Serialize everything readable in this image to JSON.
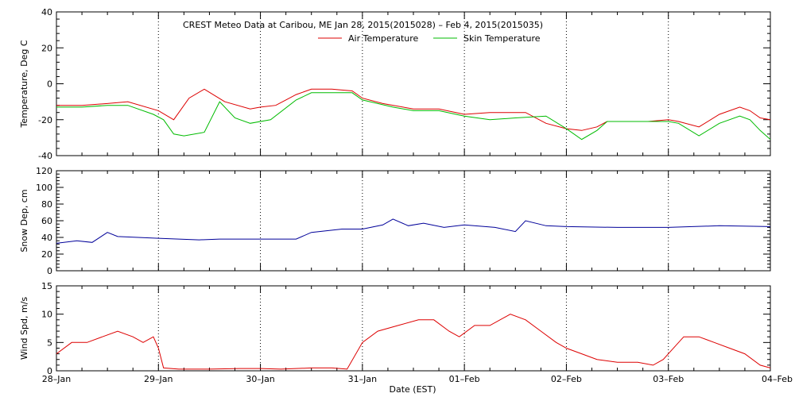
{
  "figure": {
    "title": "CREST Meteo Data at Caribou, ME   Jan 28, 2015(2015028) – Feb  4, 2015(2015035)",
    "xlabel": "Date (EST)"
  },
  "colors": {
    "air": "#dd0000",
    "skin": "#00bb00",
    "snow": "#000099",
    "wind": "#dd0000",
    "axis": "#000000"
  },
  "chart_data": [
    {
      "type": "line",
      "ylabel": "Temperature, Deg C",
      "ylim": [
        -40,
        40
      ],
      "yticks": [
        "-40",
        "-20",
        "0",
        "20",
        "40"
      ],
      "xlim": [
        0,
        7
      ],
      "xticks": [
        "28–Jan",
        "29–Jan",
        "30–Jan",
        "31–Jan",
        "01–Feb",
        "02–Feb",
        "03–Feb",
        "04–Feb"
      ],
      "grid": "vertical dotted",
      "legend": "top-center",
      "series": [
        {
          "name": "Air Temperature",
          "x": [
            0,
            0.25,
            0.5,
            0.7,
            1.0,
            1.15,
            1.3,
            1.45,
            1.65,
            1.9,
            2.0,
            2.15,
            2.35,
            2.5,
            2.7,
            2.9,
            3.0,
            3.2,
            3.5,
            3.75,
            4.0,
            4.25,
            4.4,
            4.6,
            4.8,
            5.0,
            5.15,
            5.3,
            5.4,
            5.6,
            5.8,
            6.0,
            6.1,
            6.3,
            6.5,
            6.7,
            6.8,
            6.9,
            7.0
          ],
          "y": [
            -12,
            -12,
            -11,
            -10,
            -15,
            -20,
            -8,
            -3,
            -10,
            -14,
            -13,
            -12,
            -6,
            -3,
            -3,
            -4,
            -8,
            -11,
            -14,
            -14,
            -17,
            -16,
            -16,
            -16,
            -22,
            -25,
            -26,
            -24,
            -21,
            -21,
            -21,
            -20,
            -21,
            -24,
            -17,
            -13,
            -15,
            -19,
            -20
          ]
        },
        {
          "name": "Skin Temperature",
          "x": [
            0,
            0.25,
            0.5,
            0.7,
            0.95,
            1.05,
            1.15,
            1.25,
            1.45,
            1.6,
            1.75,
            1.9,
            2.1,
            2.35,
            2.5,
            2.7,
            2.9,
            3.0,
            3.3,
            3.5,
            3.75,
            4.0,
            4.25,
            4.5,
            4.8,
            5.0,
            5.15,
            5.3,
            5.4,
            5.6,
            5.8,
            6.0,
            6.1,
            6.3,
            6.5,
            6.7,
            6.8,
            6.9,
            7.0
          ],
          "y": [
            -13,
            -13,
            -12,
            -12,
            -17,
            -20,
            -28,
            -29,
            -27,
            -10,
            -19,
            -22,
            -20,
            -9,
            -5,
            -5,
            -5,
            -9,
            -13,
            -15,
            -15,
            -18,
            -20,
            -19,
            -18,
            -25,
            -31,
            -26,
            -21,
            -21,
            -21,
            -21,
            -22,
            -29,
            -22,
            -18,
            -20,
            -26,
            -31
          ]
        }
      ]
    },
    {
      "type": "line",
      "ylabel": "Snow Dep, cm",
      "ylim": [
        0,
        120
      ],
      "yticks": [
        "0",
        "20",
        "40",
        "60",
        "80",
        "100",
        "120"
      ],
      "xlim": [
        0,
        7
      ],
      "grid": "vertical dotted",
      "series": [
        {
          "x": [
            0,
            0.2,
            0.35,
            0.5,
            0.6,
            0.8,
            1.0,
            1.2,
            1.4,
            1.6,
            1.8,
            2.0,
            2.2,
            2.35,
            2.5,
            2.8,
            3.0,
            3.2,
            3.3,
            3.45,
            3.6,
            3.8,
            4.0,
            4.3,
            4.5,
            4.6,
            4.8,
            5.0,
            5.5,
            6.0,
            6.5,
            7.0
          ],
          "y": [
            33,
            36,
            34,
            46,
            41,
            40,
            39,
            38,
            37,
            38,
            38,
            38,
            38,
            38,
            46,
            50,
            50,
            55,
            62,
            54,
            57,
            52,
            55,
            52,
            47,
            60,
            54,
            53,
            52,
            52,
            54,
            53
          ]
        }
      ]
    },
    {
      "type": "line",
      "ylabel": "Wind Spd, m/s",
      "ylim": [
        0,
        15
      ],
      "yticks": [
        "0",
        "5",
        "10",
        "15"
      ],
      "xlim": [
        0,
        7
      ],
      "grid": "vertical dotted",
      "series": [
        {
          "x": [
            0,
            0.15,
            0.3,
            0.45,
            0.6,
            0.75,
            0.85,
            0.95,
            1.0,
            1.05,
            1.2,
            1.5,
            1.8,
            2.0,
            2.2,
            2.5,
            2.7,
            2.85,
            3.0,
            3.15,
            3.35,
            3.55,
            3.7,
            3.85,
            3.95,
            4.1,
            4.25,
            4.45,
            4.6,
            4.75,
            4.9,
            5.0,
            5.15,
            5.3,
            5.5,
            5.7,
            5.85,
            5.95,
            6.0,
            6.15,
            6.3,
            6.45,
            6.6,
            6.75,
            6.9,
            7.0
          ],
          "y": [
            3,
            5,
            5,
            6,
            7,
            6,
            5,
            6,
            4,
            0.5,
            0.3,
            0.3,
            0.4,
            0.4,
            0.3,
            0.5,
            0.5,
            0.3,
            5,
            7,
            8,
            9,
            9,
            7,
            6,
            8,
            8,
            10,
            9,
            7,
            5,
            4,
            3,
            2,
            1.5,
            1.5,
            1,
            2,
            3,
            6,
            6,
            5,
            4,
            3,
            1,
            0.5
          ]
        }
      ]
    }
  ]
}
